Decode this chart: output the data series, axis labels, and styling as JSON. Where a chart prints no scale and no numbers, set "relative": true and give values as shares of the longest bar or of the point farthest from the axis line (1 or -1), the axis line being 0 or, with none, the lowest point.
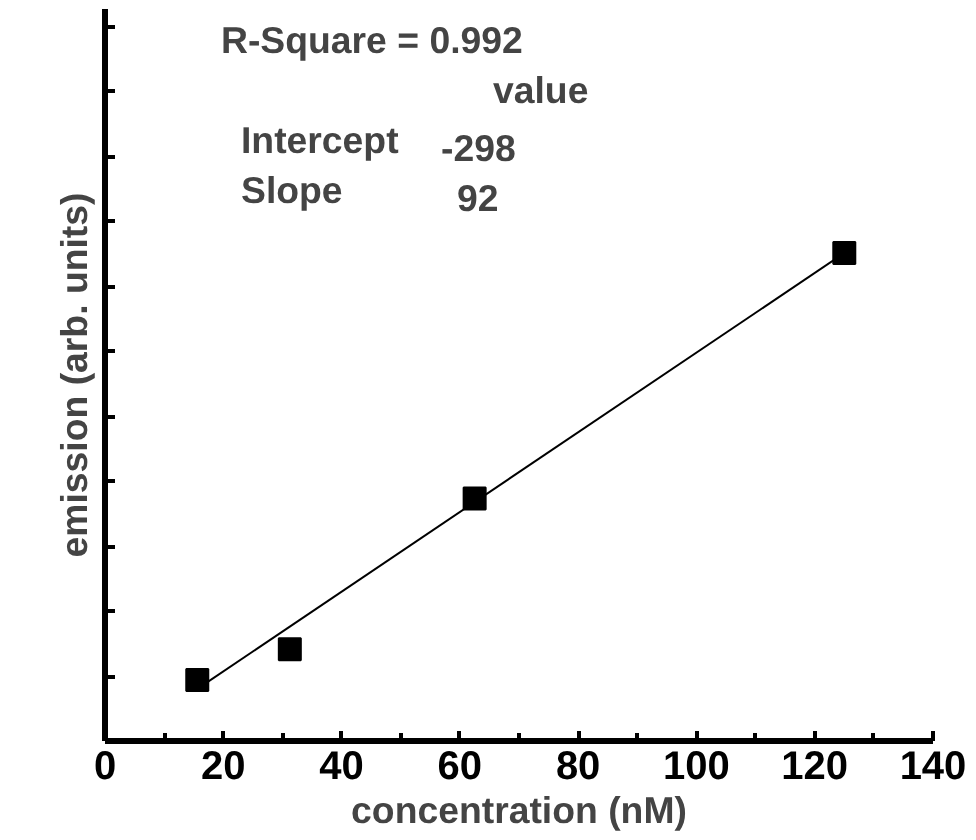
{
  "chart_data": {
    "type": "scatter",
    "xlabel": "concentration (nM)",
    "ylabel": "emission (arb. units)",
    "relative": true,
    "tick_labels": "x",
    "xlim": [
      0,
      140
    ],
    "xticks": [
      0,
      20,
      40,
      60,
      80,
      100,
      120,
      140
    ],
    "marker": "square",
    "grid": false,
    "x": [
      15.6,
      31.25,
      62.5,
      125
    ],
    "series": [
      {
        "color": "#000000",
        "values": [
          0.125,
          0.188,
          0.497,
          1
        ]
      },
      {
        "type": "line",
        "color": "#000000",
        "marker": "none",
        "x": [
          16,
          125
        ],
        "values": [
          0.11,
          1
        ]
      }
    ],
    "annotations": [
      "R-Square = 0.992",
      "value",
      "Intercept",
      "-298",
      "Slope",
      "92"
    ]
  }
}
